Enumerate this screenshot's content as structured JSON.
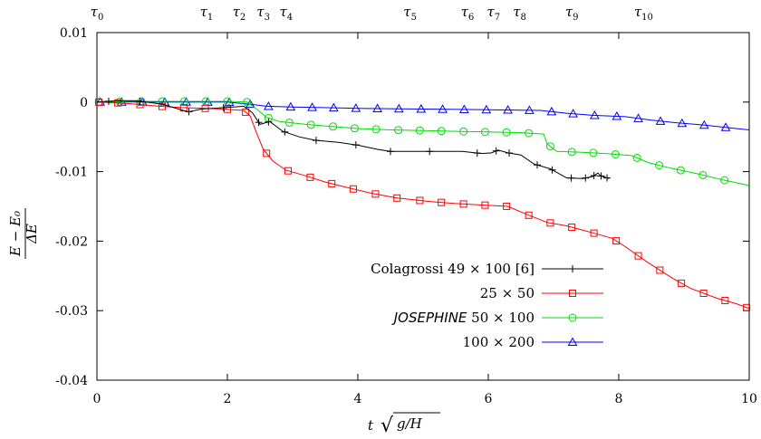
{
  "chart_data": {
    "type": "line",
    "xlabel": "t √(g/H)",
    "ylabel": "(E − E0) / ΔE",
    "xlim": [
      0,
      10
    ],
    "ylim": [
      -0.04,
      0.01
    ],
    "x_ticks": [
      "0",
      "2",
      "4",
      "6",
      "8",
      "10"
    ],
    "y_ticks": [
      "0.01",
      "0",
      "-0.01",
      "-0.02",
      "-0.03",
      "-0.04"
    ],
    "grid": false,
    "legend_position": "center-right",
    "tau_markers": [
      {
        "label": "τ0",
        "x": 0.0
      },
      {
        "label": "τ1",
        "x": 1.68
      },
      {
        "label": "τ2",
        "x": 2.18
      },
      {
        "label": "τ3",
        "x": 2.55
      },
      {
        "label": "τ4",
        "x": 2.9
      },
      {
        "label": "τ5",
        "x": 4.8
      },
      {
        "label": "τ6",
        "x": 5.68
      },
      {
        "label": "τ7",
        "x": 6.08
      },
      {
        "label": "τ8",
        "x": 6.48
      },
      {
        "label": "τ9",
        "x": 7.28
      },
      {
        "label": "τ10",
        "x": 8.38
      }
    ],
    "series": [
      {
        "name": "Colagrossi 49 × 100 [6]",
        "color": "#000000",
        "marker": "plus",
        "points": [
          [
            0,
            0
          ],
          [
            0.3,
            0.0002
          ],
          [
            0.6,
            0.0002
          ],
          [
            1.0,
            -0.0003
          ],
          [
            1.4,
            -0.0014
          ],
          [
            1.6,
            -0.001
          ],
          [
            1.95,
            -0.0008
          ],
          [
            2.25,
            -0.0006
          ],
          [
            2.38,
            -0.0015
          ],
          [
            2.5,
            -0.0032
          ],
          [
            2.65,
            -0.0028
          ],
          [
            2.85,
            -0.0042
          ],
          [
            3.1,
            -0.005
          ],
          [
            3.35,
            -0.0055
          ],
          [
            3.7,
            -0.0058
          ],
          [
            4.0,
            -0.0062
          ],
          [
            4.3,
            -0.0068
          ],
          [
            4.5,
            -0.0071
          ],
          [
            5.0,
            -0.0071
          ],
          [
            5.6,
            -0.0071
          ],
          [
            5.9,
            -0.0074
          ],
          [
            6.05,
            -0.0073
          ],
          [
            6.15,
            -0.0069
          ],
          [
            6.3,
            -0.0073
          ],
          [
            6.5,
            -0.0076
          ],
          [
            6.7,
            -0.0089
          ],
          [
            6.95,
            -0.0096
          ],
          [
            7.2,
            -0.0109
          ],
          [
            7.45,
            -0.011
          ],
          [
            7.6,
            -0.0107
          ],
          [
            7.68,
            -0.0102
          ],
          [
            7.72,
            -0.0106
          ],
          [
            7.85,
            -0.011
          ]
        ],
        "markers_x": [
          0.18,
          0.66,
          1.41,
          1.94,
          2.48,
          2.63,
          2.88,
          3.36,
          3.97,
          4.5,
          5.1,
          5.83,
          6.12,
          6.32,
          6.75,
          6.98,
          7.27,
          7.49,
          7.62,
          7.73,
          7.82
        ]
      },
      {
        "name": "25 × 50",
        "color": "#ff0000",
        "marker": "square",
        "points": [
          [
            0,
            0
          ],
          [
            0.3,
            -0.0001
          ],
          [
            0.6,
            -0.0003
          ],
          [
            0.95,
            -0.0006
          ],
          [
            1.3,
            -0.0008
          ],
          [
            1.65,
            -0.0009
          ],
          [
            1.95,
            -0.001
          ],
          [
            2.25,
            -0.0012
          ],
          [
            2.35,
            -0.002
          ],
          [
            2.45,
            -0.0045
          ],
          [
            2.55,
            -0.0068
          ],
          [
            2.7,
            -0.0085
          ],
          [
            2.9,
            -0.0098
          ],
          [
            3.2,
            -0.0106
          ],
          [
            3.5,
            -0.0115
          ],
          [
            3.8,
            -0.0122
          ],
          [
            4.2,
            -0.0131
          ],
          [
            4.6,
            -0.0138
          ],
          [
            5.1,
            -0.0143
          ],
          [
            5.5,
            -0.0146
          ],
          [
            5.9,
            -0.0148
          ],
          [
            6.3,
            -0.015
          ],
          [
            6.6,
            -0.0162
          ],
          [
            6.9,
            -0.0173
          ],
          [
            7.2,
            -0.0178
          ],
          [
            7.6,
            -0.0188
          ],
          [
            7.9,
            -0.0196
          ],
          [
            8.1,
            -0.0208
          ],
          [
            8.45,
            -0.0231
          ],
          [
            8.8,
            -0.0252
          ],
          [
            9.1,
            -0.0268
          ],
          [
            9.5,
            -0.0282
          ],
          [
            9.8,
            -0.029
          ],
          [
            10,
            -0.0297
          ]
        ],
        "markers_x": [
          0.03,
          0.32,
          0.66,
          1.0,
          1.33,
          1.66,
          2.0,
          2.28,
          2.6,
          2.93,
          3.27,
          3.6,
          3.93,
          4.27,
          4.6,
          4.95,
          5.28,
          5.62,
          5.95,
          6.28,
          6.62,
          6.95,
          7.28,
          7.62,
          7.96,
          8.3,
          8.63,
          8.96,
          9.3,
          9.63,
          9.96
        ]
      },
      {
        "name": "JOSEPHINE 50 × 100",
        "color": "#00dd00",
        "marker": "circle",
        "points": [
          [
            0,
            0
          ],
          [
            0.5,
            0.0001
          ],
          [
            1.0,
            0.0001
          ],
          [
            1.5,
            0.0001
          ],
          [
            2.0,
            0.0001
          ],
          [
            2.3,
            0.0
          ],
          [
            2.45,
            -0.001
          ],
          [
            2.6,
            -0.0022
          ],
          [
            2.8,
            -0.0028
          ],
          [
            3.2,
            -0.0032
          ],
          [
            3.6,
            -0.0035
          ],
          [
            4.0,
            -0.0038
          ],
          [
            4.5,
            -0.004
          ],
          [
            5.0,
            -0.0041
          ],
          [
            5.5,
            -0.0042
          ],
          [
            6.0,
            -0.0043
          ],
          [
            6.5,
            -0.0044
          ],
          [
            6.85,
            -0.0046
          ],
          [
            6.9,
            -0.006
          ],
          [
            7.05,
            -0.0071
          ],
          [
            7.4,
            -0.0072
          ],
          [
            7.8,
            -0.0074
          ],
          [
            8.2,
            -0.0077
          ],
          [
            8.45,
            -0.0087
          ],
          [
            8.8,
            -0.0095
          ],
          [
            9.2,
            -0.0103
          ],
          [
            9.6,
            -0.0112
          ],
          [
            10,
            -0.012
          ]
        ],
        "markers_x": [
          0.03,
          0.35,
          0.68,
          1.0,
          1.34,
          1.67,
          2.0,
          2.3,
          2.63,
          2.95,
          3.28,
          3.62,
          3.95,
          4.28,
          4.62,
          4.95,
          5.28,
          5.62,
          5.95,
          6.28,
          6.62,
          6.95,
          7.28,
          7.61,
          7.95,
          8.28,
          8.62,
          8.95,
          9.29,
          9.62
        ]
      },
      {
        "name": "100 × 200",
        "color": "#0000ff",
        "marker": "triangle",
        "points": [
          [
            0,
            0
          ],
          [
            0.5,
            0.0
          ],
          [
            1.0,
            0.0
          ],
          [
            1.5,
            0.0
          ],
          [
            2.0,
            0.0
          ],
          [
            2.35,
            -0.0003
          ],
          [
            2.6,
            -0.0006
          ],
          [
            3.0,
            -0.0007
          ],
          [
            4.0,
            -0.0009
          ],
          [
            5.0,
            -0.001
          ],
          [
            6.0,
            -0.0011
          ],
          [
            6.8,
            -0.0012
          ],
          [
            7.2,
            -0.0016
          ],
          [
            7.6,
            -0.0019
          ],
          [
            8.1,
            -0.0021
          ],
          [
            8.5,
            -0.0026
          ],
          [
            8.9,
            -0.003
          ],
          [
            9.3,
            -0.0033
          ],
          [
            9.7,
            -0.0037
          ],
          [
            10,
            -0.004
          ]
        ],
        "markers_x": [
          0.05,
          0.38,
          0.7,
          1.04,
          1.37,
          1.7,
          2.03,
          2.35,
          2.63,
          2.97,
          3.3,
          3.63,
          3.97,
          4.3,
          4.63,
          4.97,
          5.3,
          5.63,
          5.97,
          6.3,
          6.63,
          6.97,
          7.3,
          7.63,
          7.97,
          8.3,
          8.64,
          8.97,
          9.31,
          9.64
        ]
      }
    ]
  },
  "legend": {
    "entries": [
      {
        "text": "Colagrossi 49 × 100 [6]",
        "italic_prefix": ""
      },
      {
        "text": "25 × 50",
        "italic_prefix": ""
      },
      {
        "text": "  50 × 100",
        "italic_prefix": "JOSEPHINE"
      },
      {
        "text": "100 × 200",
        "italic_prefix": ""
      }
    ]
  }
}
